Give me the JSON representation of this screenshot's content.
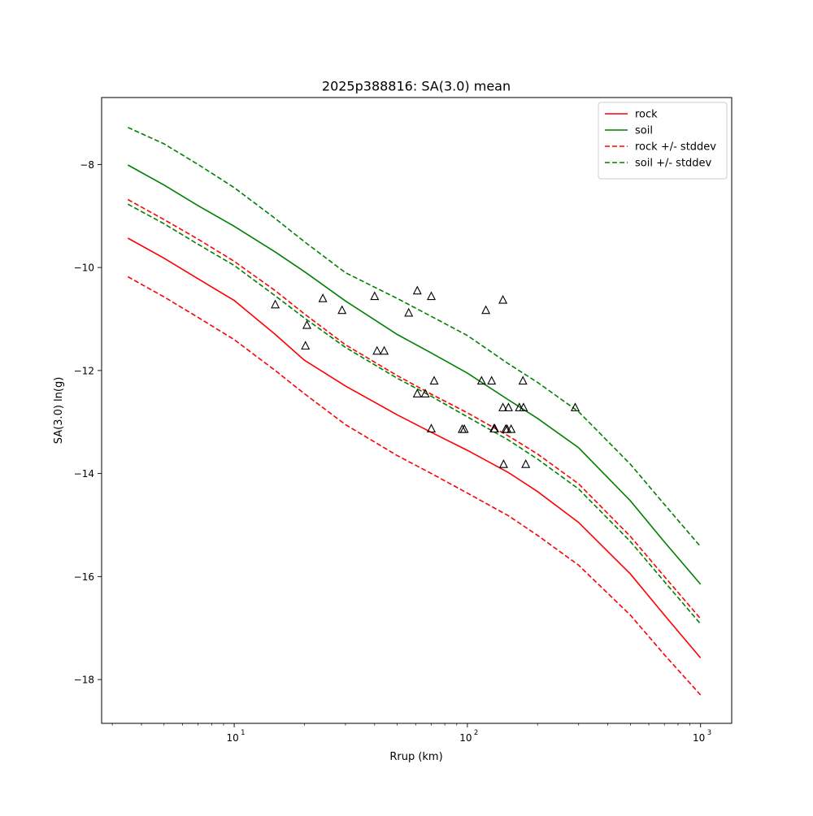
{
  "chart_data": {
    "type": "line",
    "title": "2025p388816: SA(3.0) mean",
    "xlabel": "Rrup (km)",
    "ylabel": "SA(3.0) ln(g)",
    "xscale": "log",
    "xlim": [
      2.7,
      1360
    ],
    "ylim": [
      -18.85,
      -6.7
    ],
    "x_ticks": [
      10,
      100,
      1000
    ],
    "x_tick_labels": [
      "10",
      "10",
      "10"
    ],
    "x_tick_label_exps": [
      "1",
      "2",
      "3"
    ],
    "y_ticks": [
      -8,
      -10,
      -12,
      -14,
      -16,
      -18
    ],
    "y_tick_labels": [
      "−8",
      "−10",
      "−12",
      "−14",
      "−16",
      "−18"
    ],
    "grid": false,
    "legend_position": "top-right",
    "series": [
      {
        "name": "rock",
        "color": "#ff0000",
        "style": "solid",
        "x": [
          3.5,
          5,
          7,
          10,
          15,
          20,
          30,
          50,
          70,
          100,
          150,
          200,
          300,
          500,
          700,
          1000
        ],
        "y": [
          -9.43,
          -9.82,
          -10.22,
          -10.64,
          -11.3,
          -11.8,
          -12.3,
          -12.86,
          -13.2,
          -13.55,
          -13.98,
          -14.35,
          -14.95,
          -15.95,
          -16.75,
          -17.58
        ]
      },
      {
        "name": "soil",
        "color": "#008000",
        "style": "solid",
        "x": [
          3.5,
          5,
          7,
          10,
          15,
          20,
          30,
          50,
          70,
          100,
          150,
          200,
          300,
          500,
          700,
          1000
        ],
        "y": [
          -8.01,
          -8.4,
          -8.8,
          -9.2,
          -9.7,
          -10.08,
          -10.65,
          -11.3,
          -11.66,
          -12.05,
          -12.57,
          -12.93,
          -13.5,
          -14.53,
          -15.33,
          -16.15
        ]
      },
      {
        "name": "rock +/- stddev",
        "color": "#ff0000",
        "style": "dashed",
        "x": [
          3.5,
          5,
          7,
          10,
          15,
          20,
          30,
          50,
          70,
          100,
          150,
          200,
          300,
          500,
          700,
          1000
        ],
        "y": [
          -8.68,
          -9.07,
          -9.45,
          -9.88,
          -10.45,
          -10.9,
          -11.5,
          -12.1,
          -12.46,
          -12.82,
          -13.27,
          -13.62,
          -14.2,
          -15.22,
          -16.0,
          -16.82
        ]
      },
      {
        "name": "",
        "color": "#ff0000",
        "style": "dashed",
        "x": [
          3.5,
          5,
          7,
          10,
          15,
          20,
          30,
          50,
          70,
          100,
          150,
          200,
          300,
          500,
          700,
          1000
        ],
        "y": [
          -10.18,
          -10.57,
          -10.97,
          -11.4,
          -12.0,
          -12.45,
          -13.05,
          -13.65,
          -14.0,
          -14.38,
          -14.82,
          -15.2,
          -15.78,
          -16.75,
          -17.52,
          -18.3
        ]
      },
      {
        "name": "soil +/- stddev",
        "color": "#008000",
        "style": "dashed",
        "x": [
          3.5,
          5,
          7,
          10,
          15,
          20,
          30,
          50,
          70,
          100,
          150,
          200,
          300,
          500,
          700,
          1000
        ],
        "y": [
          -7.28,
          -7.6,
          -8.0,
          -8.45,
          -9.05,
          -9.5,
          -10.1,
          -10.6,
          -10.95,
          -11.32,
          -11.87,
          -12.23,
          -12.8,
          -13.82,
          -14.6,
          -15.42
        ]
      },
      {
        "name": "",
        "color": "#008000",
        "style": "dashed",
        "x": [
          3.5,
          5,
          7,
          10,
          15,
          20,
          30,
          50,
          70,
          100,
          150,
          200,
          300,
          500,
          700,
          1000
        ],
        "y": [
          -8.77,
          -9.15,
          -9.55,
          -9.96,
          -10.55,
          -10.98,
          -11.55,
          -12.15,
          -12.5,
          -12.9,
          -13.35,
          -13.72,
          -14.3,
          -15.32,
          -16.1,
          -16.92
        ]
      }
    ],
    "observations": {
      "marker": "triangle",
      "color": "#000000",
      "x": [
        15,
        20.5,
        20.2,
        24,
        29,
        40,
        41,
        44,
        56,
        61,
        61,
        66,
        70,
        70,
        72,
        95,
        97,
        115,
        120,
        127,
        130,
        131,
        142,
        142,
        143,
        146,
        148,
        150,
        154,
        167,
        173,
        174,
        178,
        290
      ],
      "y": [
        -10.72,
        -11.12,
        -11.52,
        -10.6,
        -10.83,
        -10.56,
        -11.62,
        -11.62,
        -10.88,
        -10.45,
        -12.45,
        -12.45,
        -10.56,
        -13.13,
        -12.2,
        -13.14,
        -13.14,
        -12.2,
        -10.83,
        -12.2,
        -13.13,
        -13.13,
        -10.63,
        -12.72,
        -13.82,
        -13.14,
        -13.14,
        -12.72,
        -13.14,
        -12.72,
        -12.2,
        -12.72,
        -13.82,
        -12.72
      ]
    }
  }
}
